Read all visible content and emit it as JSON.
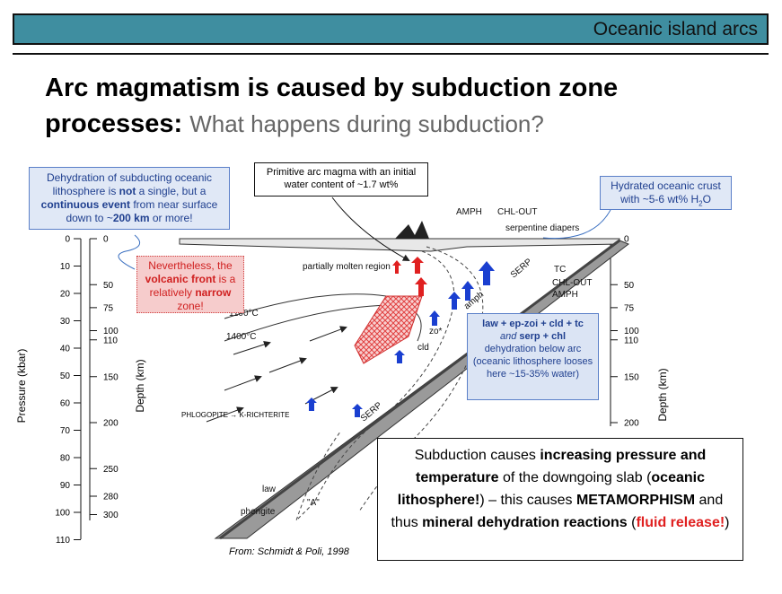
{
  "header": {
    "title": "Oceanic island arcs"
  },
  "heading": {
    "bold": "Arc magmatism is caused by subduction zone processes:",
    "normal": "What happens during subduction?"
  },
  "callouts": {
    "dehydration": [
      "Dehydration of subducting oceanic lithosphere is ",
      "not",
      " a single, but a ",
      "continuous event",
      " from near surface down to ~",
      "200 km",
      " or more!"
    ],
    "primitive": "Primitive arc magma with an initial water content of ~1.7 wt%",
    "hydrated": [
      "Hydrated oceanic crust with ~5-6 wt% H",
      "2",
      "O"
    ],
    "volcanic": [
      "Nevertheless, the ",
      "volcanic front",
      " is a relatively ",
      "narrow",
      " zone!"
    ],
    "dehydration_below_arc": [
      "law + ep-zoi + cld + tc",
      "and",
      "serp + chl",
      "dehydration below arc (oceanic lithosphere looses here ~15-35% water)"
    ],
    "summary": [
      "Subduction causes ",
      "increasing pressure and temperature",
      " of the downgoing slab (",
      "oceanic lithosphere!",
      ") – this causes ",
      "METAMORPHISM",
      " and thus ",
      "mineral dehydration reactions",
      " (",
      "fluid release!",
      ")"
    ]
  },
  "source": "From: Schmidt & Poli, 1998",
  "axes": {
    "pressure": {
      "label": "Pressure (kbar)",
      "ticks": [
        0,
        10,
        20,
        30,
        40,
        50,
        60,
        70,
        80,
        90,
        100,
        110
      ]
    },
    "depth_left": {
      "label": "Depth (km)",
      "ticks": [
        0,
        50,
        75,
        100,
        110,
        150,
        200,
        250,
        280,
        300
      ]
    },
    "depth_right": {
      "label": "Depth (km)",
      "ticks": [
        0,
        50,
        75,
        100,
        110,
        150,
        200
      ]
    }
  },
  "diagram_labels": [
    "AMPH",
    "CHL-OUT",
    "serpentine diapers",
    "partially molten region",
    "1100°C",
    "1400°C",
    "SERP",
    "TC",
    "CHL-OUT",
    "AMPH",
    "amph",
    "zo*",
    "cld",
    "PHLOGOPITE → K-RICHTERITE",
    "SERP",
    "law",
    "phengite",
    "\"A\""
  ]
}
